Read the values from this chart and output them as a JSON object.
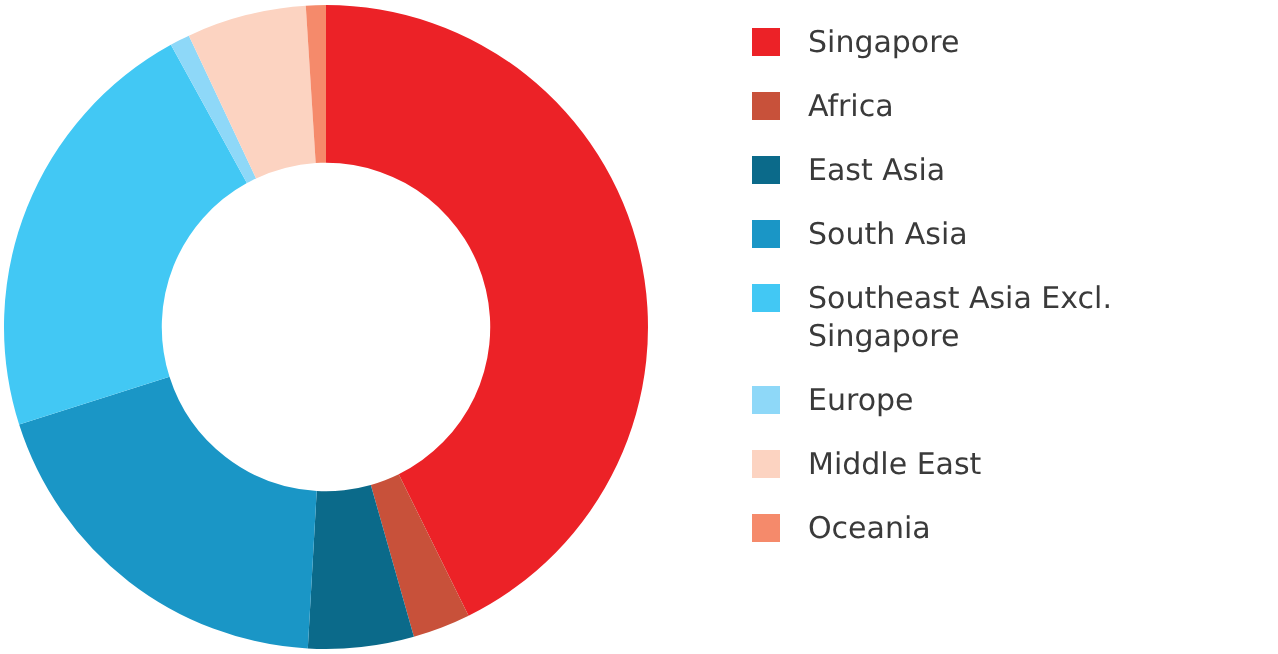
{
  "chart_data": {
    "type": "donut",
    "categories": [
      "Singapore",
      "Africa",
      "East Asia",
      "South Asia",
      "Southeast Asia Excl. Singapore",
      "Europe",
      "Middle East",
      "Oceania"
    ],
    "values": [
      42.7,
      2.9,
      5.3,
      19.2,
      21.9,
      1,
      6,
      1
    ],
    "colors": [
      "#ec2227",
      "#c8513a",
      "#0b6a8a",
      "#1a96c6",
      "#42c8f4",
      "#8ed8f8",
      "#fcd3c1",
      "#f58a6b"
    ],
    "legend": "right"
  }
}
